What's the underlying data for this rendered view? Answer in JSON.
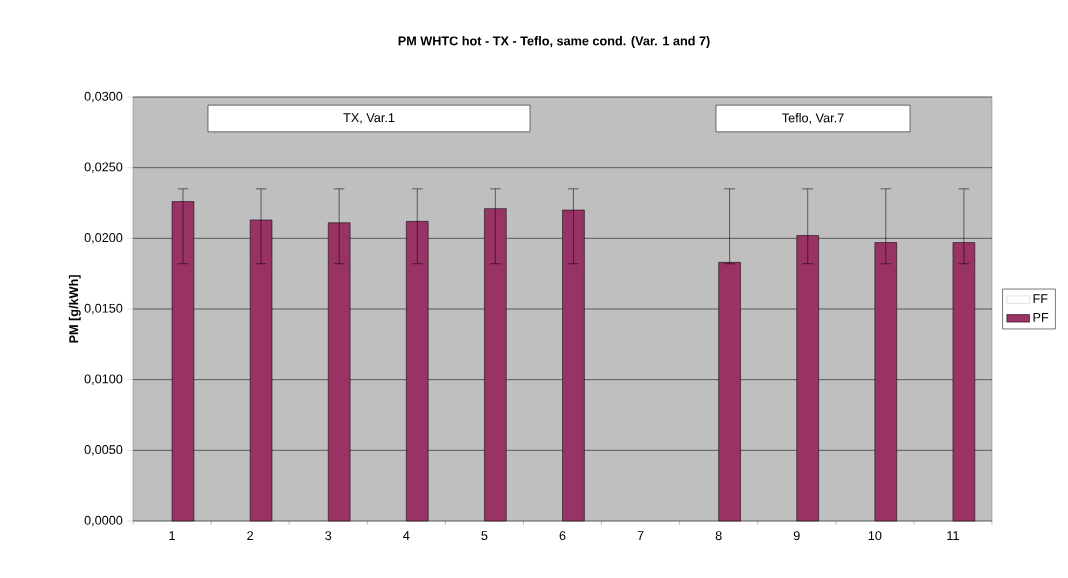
{
  "chart_data": {
    "type": "bar",
    "title": "PM WHTC hot - TX - Teflo, same cond. (Var. 1 and 7)",
    "ylabel": "PM [g/kWh]",
    "categories": [
      "1",
      "2",
      "3",
      "4",
      "5",
      "6",
      "7",
      "8",
      "9",
      "10",
      "11"
    ],
    "series": [
      {
        "name": "FF",
        "color": "#ffffff",
        "values": [
          null,
          null,
          null,
          null,
          null,
          null,
          null,
          null,
          null,
          null,
          null
        ]
      },
      {
        "name": "PF",
        "color": "#993366",
        "values": [
          0.0226,
          0.0213,
          0.0211,
          0.0212,
          0.0221,
          0.022,
          null,
          0.0183,
          0.0202,
          0.0197,
          0.0197
        ],
        "errors": [
          [
            0.0182,
            0.0235
          ],
          [
            0.0182,
            0.0235
          ],
          [
            0.0182,
            0.0235
          ],
          [
            0.0182,
            0.0235
          ],
          [
            0.0182,
            0.0235
          ],
          [
            0.0182,
            0.0235
          ],
          null,
          [
            0.0182,
            0.0235
          ],
          [
            0.0182,
            0.0235
          ],
          [
            0.0182,
            0.0235
          ],
          [
            0.0182,
            0.0235
          ]
        ]
      }
    ],
    "ylim": [
      0,
      0.03
    ],
    "yticks": [
      {
        "value": 0,
        "label": "0,0000"
      },
      {
        "value": 0.005,
        "label": "0,0050"
      },
      {
        "value": 0.01,
        "label": "0,0100"
      },
      {
        "value": 0.015,
        "label": "0,0150"
      },
      {
        "value": 0.02,
        "label": "0,0200"
      },
      {
        "value": 0.025,
        "label": "0,0250"
      },
      {
        "value": 0.03,
        "label": "0,0300"
      }
    ],
    "grid": "y",
    "legend": "right",
    "annotations": [
      "TX, Var.1",
      "Teflo, Var.7"
    ]
  }
}
